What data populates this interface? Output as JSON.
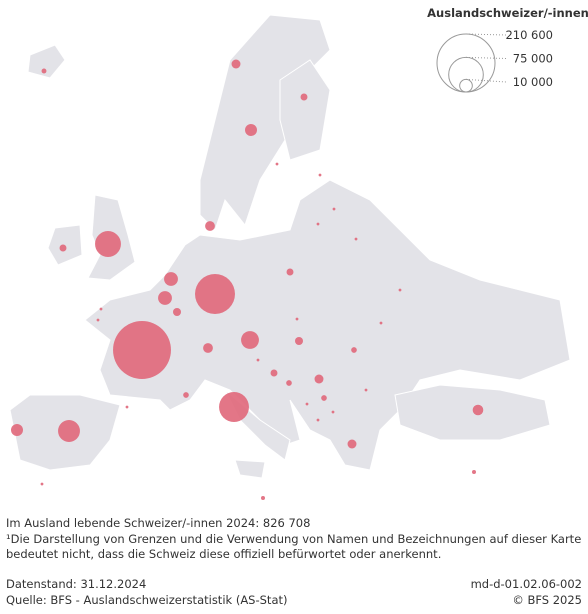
{
  "legend": {
    "title": "Auslandschweizer/-innen",
    "sizes": [
      {
        "value": 210600,
        "label": "210 600"
      },
      {
        "value": 75000,
        "label": "75 000"
      },
      {
        "value": 10000,
        "label": "10 000"
      }
    ]
  },
  "bubbles": {
    "color": "#e0677a",
    "values": [
      210000,
      100000,
      56000,
      42000,
      30000,
      20000,
      12000,
      12000,
      9000,
      9000,
      4000,
      6000,
      6000,
      5000,
      3000,
      3000,
      7000,
      5000,
      3000,
      5000,
      4000,
      3000,
      2000,
      2000,
      2000,
      1500,
      2000,
      1000,
      1000,
      500,
      500,
      500,
      500,
      500,
      500,
      500,
      500,
      500,
      500,
      500,
      500,
      500,
      500,
      500,
      500,
      500
    ]
  },
  "footer": {
    "total": "Im Ausland lebende Schweizer/-innen 2024: 826 708",
    "note_lines": [
      "¹Die Darstellung von Grenzen und die Verwendung von Namen und Bezeichnungen auf dieser Karte",
      "bedeutet nicht, dass die Schweiz diese offiziell befürwortet oder anerkennt."
    ],
    "status": "Datenstand: 31.12.2024",
    "source": "Quelle: BFS - Auslandschweizerstatistik (AS-Stat)",
    "id": "md-d-01.02.06-002",
    "copyright": "© BFS 2025"
  }
}
